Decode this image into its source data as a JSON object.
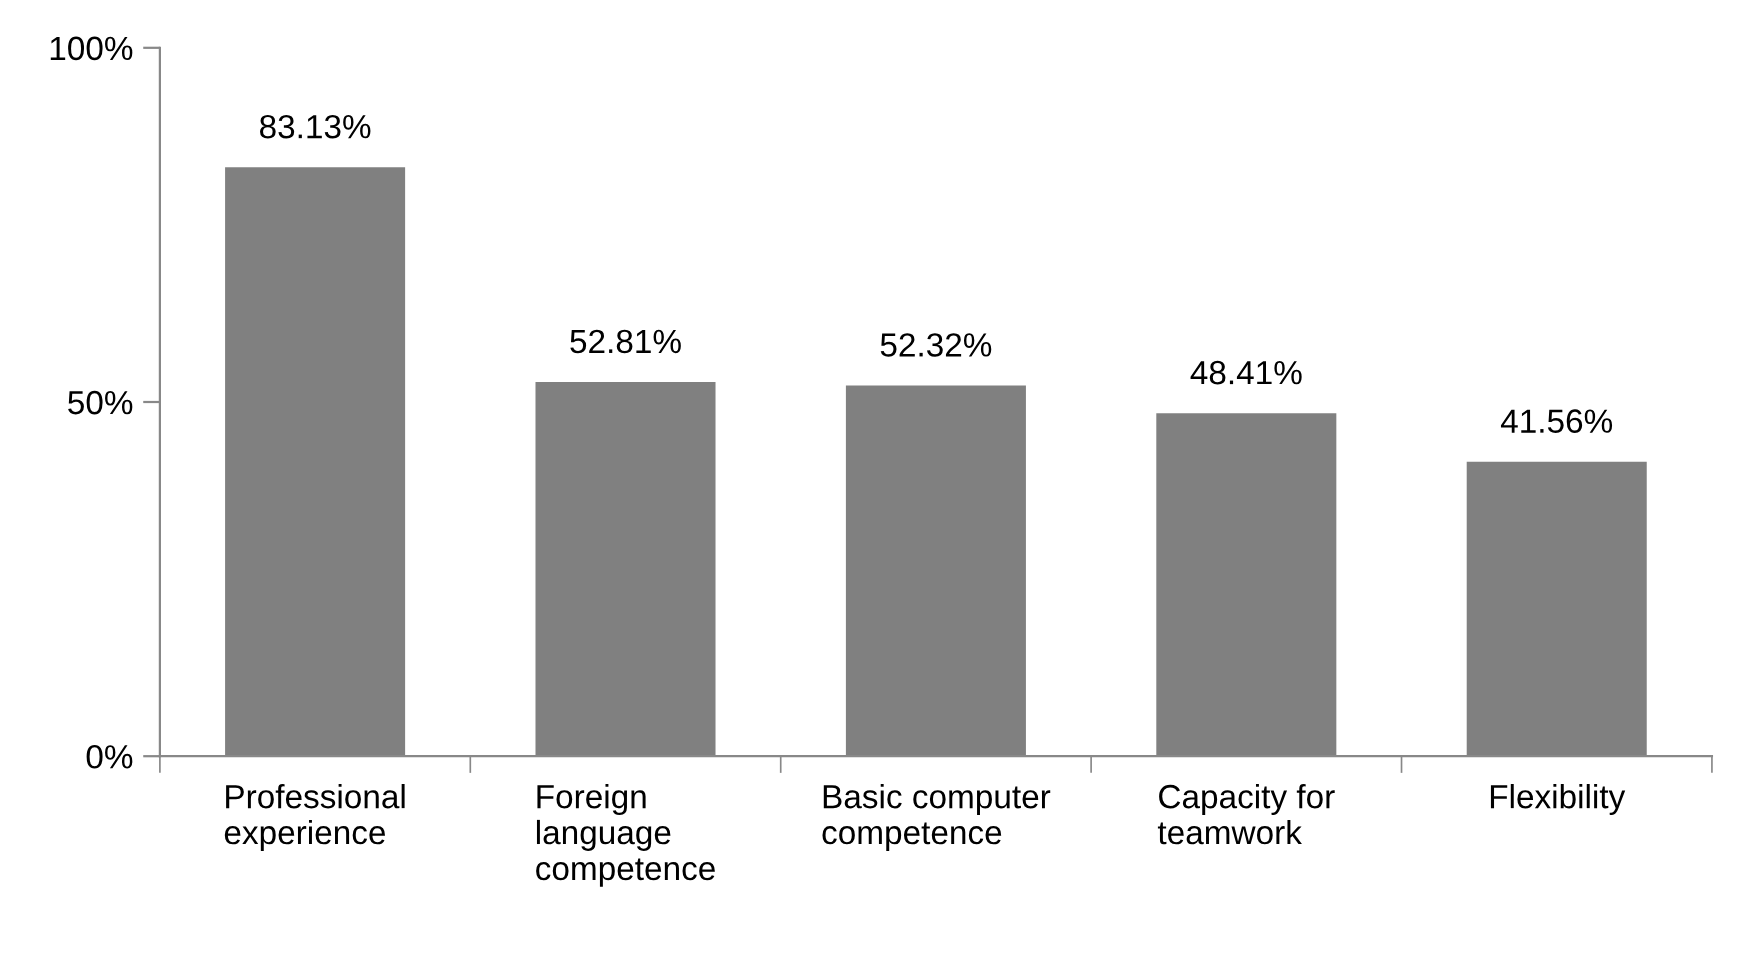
{
  "chart_data": {
    "type": "bar",
    "categories": [
      "Professional\nexperience",
      "Foreign\nlanguage\ncompetence",
      "Basic computer\ncompetence",
      "Capacity for\nteamwork",
      "Flexibility"
    ],
    "values": [
      83.13,
      52.81,
      52.32,
      48.41,
      41.56
    ],
    "value_labels": [
      "83.13%",
      "52.81%",
      "52.32%",
      "48.41%",
      "41.56%"
    ],
    "color": "#808080",
    "ylim": [
      0,
      100
    ],
    "yticks": [
      {
        "value": 0,
        "label": "0%"
      },
      {
        "value": 50,
        "label": "50%"
      },
      {
        "value": 100,
        "label": "100%"
      }
    ],
    "grid": false,
    "legend": false
  }
}
